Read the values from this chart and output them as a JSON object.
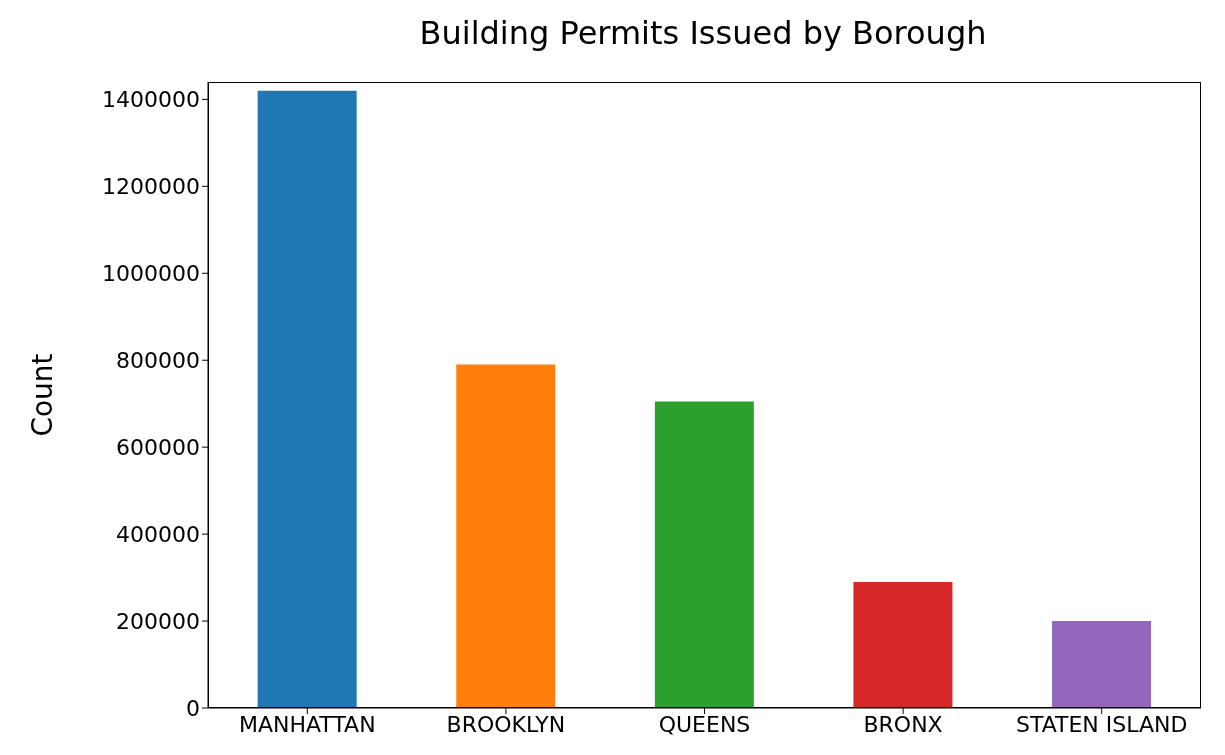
{
  "chart_data": {
    "type": "bar",
    "title": "Building Permits Issued by Borough",
    "ylabel": "Count",
    "categories": [
      "MANHATTAN",
      "BROOKLYN",
      "QUEENS",
      "BRONX",
      "STATEN ISLAND"
    ],
    "values": [
      1420000,
      790000,
      705000,
      290000,
      200000
    ],
    "colors": [
      "#1f77b4",
      "#ff7f0e",
      "#2ca02c",
      "#d62728",
      "#9467bd"
    ],
    "ylim": [
      0,
      1440000
    ],
    "yticks": [
      0,
      200000,
      400000,
      600000,
      800000,
      1000000,
      1200000,
      1400000
    ],
    "grid": false
  }
}
